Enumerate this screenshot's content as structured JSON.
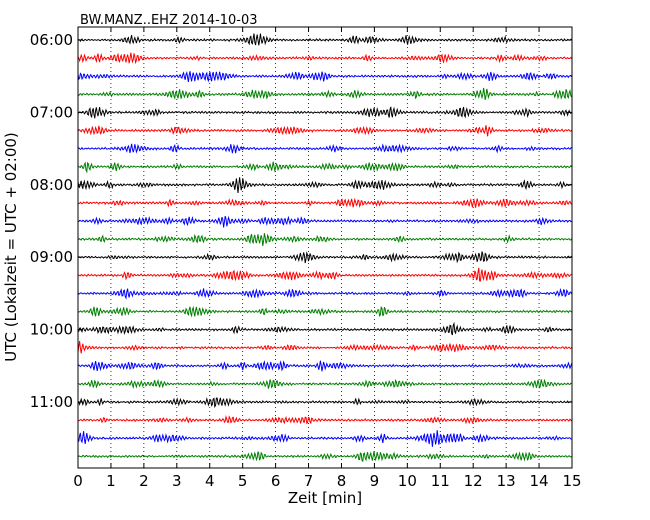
{
  "chart_data": {
    "type": "line",
    "title": "BW.MANZ..EHZ 2014-10-03",
    "xlabel": "Zeit  [min]",
    "ylabel": "UTC (Lokalzeit = UTC + 02:00)",
    "xlim": [
      0,
      15
    ],
    "x_ticks": [
      0,
      1,
      2,
      3,
      4,
      5,
      6,
      7,
      8,
      9,
      10,
      11,
      12,
      13,
      14,
      15
    ],
    "y_ticks": [
      "06:00",
      "07:00",
      "08:00",
      "09:00",
      "10:00",
      "11:00"
    ],
    "trace_interval_min": 15,
    "first_trace": "06:00",
    "trace_count": 24,
    "trace_colors": [
      "#000000",
      "#ff0000",
      "#0000ff",
      "#007f00"
    ],
    "grid": "vertical dotted"
  }
}
